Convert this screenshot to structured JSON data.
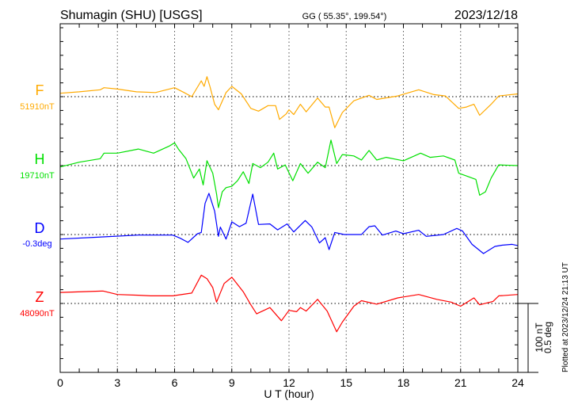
{
  "header": {
    "station": "Shumagin (SHU)  [USGS]",
    "coords": "GG ( 55.35°, 199.54°)",
    "date": "2023/12/18"
  },
  "footer": {
    "plotted": "Plotted at 2023/12/24 21:13 UT"
  },
  "chart_data": {
    "type": "line",
    "title": "Shumagin (SHU)  [USGS]",
    "xlabel": "U T (hour)",
    "xlim": [
      0,
      24
    ],
    "xticks": [
      "0",
      "3",
      "6",
      "9",
      "12",
      "15",
      "18",
      "21",
      "24"
    ],
    "grid": true,
    "scale_bar": {
      "nT_label": "100 nT",
      "deg_label": "0.5 deg",
      "nT": 100,
      "deg": 0.5
    },
    "series": [
      {
        "name": "F",
        "baseline_label": "51910nT",
        "unit": "nT",
        "color": "#FFAA00",
        "x": [
          0,
          1,
          2.1,
          2.3,
          3,
          4,
          5,
          6,
          6.5,
          6.9,
          7.4,
          7.55,
          7.7,
          7.85,
          8.1,
          8.3,
          8.7,
          9,
          9.5,
          10,
          10.4,
          10.9,
          11.3,
          11.5,
          11.85,
          12,
          12.25,
          12.6,
          12.9,
          13.5,
          13.9,
          14.1,
          14.4,
          14.8,
          15.4,
          16.2,
          16.6,
          17.7,
          18.8,
          19.6,
          20.2,
          20.9,
          21.3,
          21.7,
          22,
          22.6,
          23,
          24
        ],
        "values": [
          5,
          7,
          10,
          13,
          11,
          7,
          6,
          13,
          6,
          0,
          23,
          15,
          29,
          15,
          -11,
          -19,
          6,
          15,
          4,
          -17,
          -21,
          -13,
          -13,
          -33,
          -25,
          -19,
          -26,
          -11,
          -22,
          -2,
          -15,
          -15,
          -45,
          -23,
          -6,
          2,
          -4,
          1,
          10,
          3,
          1,
          -17,
          -15,
          -11,
          -27,
          -11,
          1,
          4
        ]
      },
      {
        "name": "H",
        "baseline_label": "19710nT",
        "unit": "nT",
        "color": "#00E000",
        "x": [
          0,
          1,
          2.1,
          2.3,
          3,
          4.1,
          4.9,
          5.7,
          6,
          6.2,
          6.6,
          7,
          7.3,
          7.5,
          7.7,
          8,
          8.2,
          8.3,
          8.5,
          8.7,
          9,
          9.3,
          9.6,
          9.9,
          10.1,
          10.5,
          10.9,
          11.2,
          11.4,
          11.8,
          12.2,
          12.6,
          13,
          13.5,
          13.9,
          14.2,
          14.5,
          14.8,
          15.4,
          15.8,
          16.2,
          16.6,
          17.1,
          18,
          18.9,
          19.4,
          20.1,
          20.7,
          20.9,
          21.3,
          21.8,
          22,
          22.3,
          22.6,
          23,
          24
        ],
        "values": [
          -2,
          5,
          10,
          18,
          18,
          24,
          18,
          28,
          33,
          24,
          10,
          -18,
          -5,
          -28,
          7,
          -11,
          -41,
          -61,
          -38,
          -32,
          -30,
          -22,
          -9,
          -26,
          3,
          -3,
          5,
          18,
          -5,
          1,
          -22,
          3,
          -11,
          5,
          -3,
          37,
          3,
          16,
          14,
          8,
          22,
          8,
          12,
          7,
          18,
          12,
          14,
          8,
          -11,
          -15,
          -20,
          -43,
          -38,
          -18,
          1,
          0
        ]
      },
      {
        "name": "D",
        "baseline_label": "-0.3deg",
        "unit": "deg",
        "color": "#0000FF",
        "x": [
          0,
          2.25,
          4.1,
          5.9,
          6.3,
          6.7,
          7.2,
          7.4,
          7.6,
          7.8,
          8.1,
          8.3,
          8.4,
          8.7,
          9,
          9.4,
          9.75,
          10.1,
          10.4,
          11,
          11.4,
          11.9,
          12.25,
          12.85,
          13.2,
          13.6,
          13.9,
          14.1,
          14.4,
          14.9,
          15.8,
          16.2,
          16.5,
          16.9,
          17.6,
          18,
          18.8,
          19.2,
          20.1,
          20.8,
          21.1,
          21.6,
          22.2,
          22.8,
          23.2,
          23.7,
          24
        ],
        "values": [
          -0.033,
          -0.017,
          -0.004,
          -0.004,
          -0.027,
          -0.057,
          0.006,
          0.015,
          0.226,
          0.299,
          0.169,
          -0.013,
          0.054,
          -0.033,
          0.092,
          0.057,
          0.082,
          0.293,
          0.073,
          0.077,
          0.034,
          0.077,
          0.019,
          0.102,
          0.054,
          -0.061,
          -0.023,
          -0.109,
          0.015,
          0,
          0,
          0.057,
          0.063,
          -0.004,
          0.025,
          0.006,
          0.031,
          -0.013,
          0,
          0.044,
          0.025,
          -0.071,
          -0.138,
          -0.086,
          -0.077,
          -0.071,
          -0.08
        ]
      },
      {
        "name": "Z",
        "baseline_label": "48090nT",
        "unit": "nT",
        "color": "#FF0000",
        "x": [
          0,
          2.25,
          3,
          4.1,
          4.75,
          5.9,
          6.9,
          7.4,
          7.7,
          8,
          8.2,
          8.6,
          9,
          9.6,
          10,
          10.3,
          11,
          11.6,
          12,
          12.4,
          12.6,
          12.9,
          13.5,
          14,
          14.5,
          14.8,
          15.4,
          15.8,
          16.6,
          17.7,
          18.8,
          19.75,
          20.5,
          21,
          21.7,
          22,
          22.7,
          23,
          24
        ],
        "values": [
          16,
          18,
          13,
          12,
          11,
          11,
          15,
          41,
          36,
          23,
          2,
          29,
          38,
          17,
          -2,
          -15,
          -6,
          -25,
          -10,
          -12,
          -6,
          -11,
          6,
          -11,
          -41,
          -27,
          -4,
          4,
          -1,
          8,
          13,
          6,
          2,
          -4,
          8,
          -2,
          3,
          11,
          13
        ]
      }
    ]
  }
}
